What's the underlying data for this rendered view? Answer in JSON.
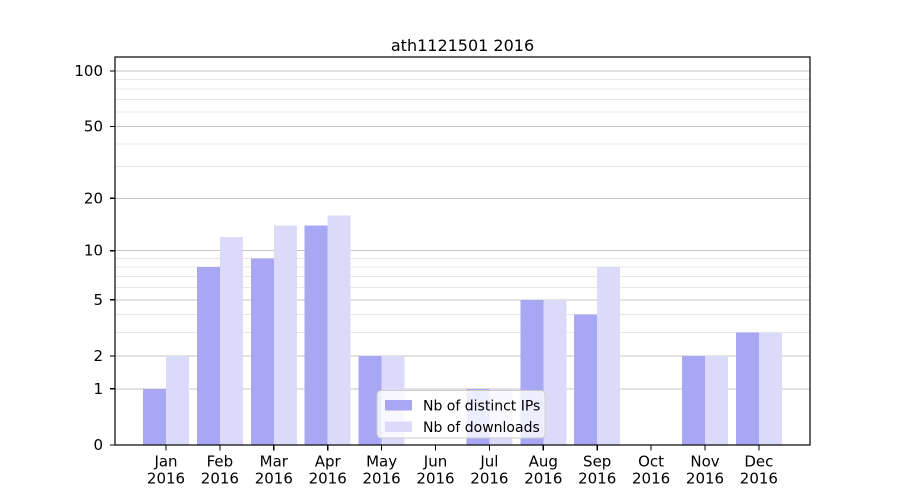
{
  "chart_data": {
    "type": "bar",
    "title": "ath1121501 2016",
    "categories": [
      "Jan",
      "Feb",
      "Mar",
      "Apr",
      "May",
      "Jun",
      "Jul",
      "Aug",
      "Sep",
      "Oct",
      "Nov",
      "Dec"
    ],
    "xlabel_year": "2016",
    "series": [
      {
        "name": "Nb of distinct IPs",
        "color": "#a7a7f4",
        "values": [
          1,
          8,
          9,
          14,
          2,
          0,
          1,
          5,
          4,
          0,
          2,
          3
        ]
      },
      {
        "name": "Nb of downloads",
        "color": "#dbdbf9",
        "values": [
          2,
          12,
          14,
          16,
          2,
          0,
          1,
          5,
          8,
          0,
          2,
          3
        ]
      }
    ],
    "xlabel": "",
    "ylabel": "",
    "yscale": "log1p",
    "ylim": [
      0,
      119
    ],
    "yticks": [
      0,
      1,
      2,
      5,
      10,
      20,
      50,
      100
    ],
    "grid": true,
    "grid_major_values": [
      1,
      2,
      5,
      10,
      20,
      50,
      100
    ],
    "grid_minor_values": [
      3,
      4,
      6,
      7,
      8,
      9,
      30,
      40,
      60,
      70,
      80,
      90
    ],
    "legend_position": "lower center"
  },
  "colors": {
    "background": "#ffffff",
    "axis": "#000000",
    "grid_major": "#c4c4c4",
    "grid_minor": "#e7e7e7",
    "legend_border": "#cccccc",
    "text": "#000000"
  }
}
